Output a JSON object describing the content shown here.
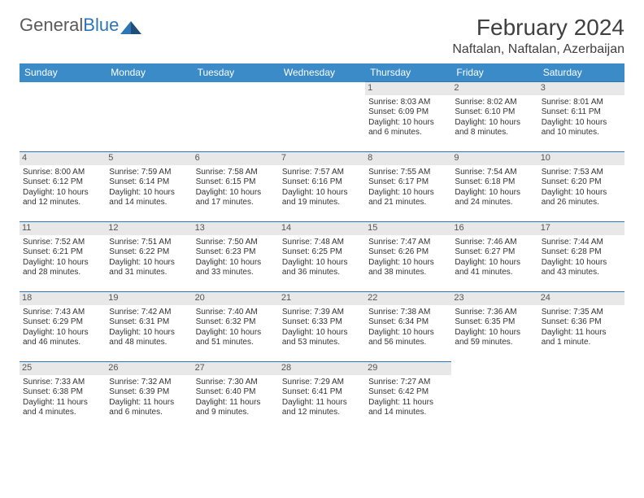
{
  "logo": {
    "text1": "General",
    "text2": "Blue"
  },
  "title": "February 2024",
  "location": "Naftalan, Naftalan, Azerbaijan",
  "colors": {
    "header_bg": "#3b8bc8",
    "header_text": "#ffffff",
    "border": "#2e75b6",
    "daynum_bg": "#e8e8e8",
    "text": "#333333",
    "title_text": "#404040"
  },
  "day_headers": [
    "Sunday",
    "Monday",
    "Tuesday",
    "Wednesday",
    "Thursday",
    "Friday",
    "Saturday"
  ],
  "weeks": [
    [
      null,
      null,
      null,
      null,
      {
        "n": "1",
        "sunrise": "Sunrise: 8:03 AM",
        "sunset": "Sunset: 6:09 PM",
        "day1": "Daylight: 10 hours",
        "day2": "and 6 minutes."
      },
      {
        "n": "2",
        "sunrise": "Sunrise: 8:02 AM",
        "sunset": "Sunset: 6:10 PM",
        "day1": "Daylight: 10 hours",
        "day2": "and 8 minutes."
      },
      {
        "n": "3",
        "sunrise": "Sunrise: 8:01 AM",
        "sunset": "Sunset: 6:11 PM",
        "day1": "Daylight: 10 hours",
        "day2": "and 10 minutes."
      }
    ],
    [
      {
        "n": "4",
        "sunrise": "Sunrise: 8:00 AM",
        "sunset": "Sunset: 6:12 PM",
        "day1": "Daylight: 10 hours",
        "day2": "and 12 minutes."
      },
      {
        "n": "5",
        "sunrise": "Sunrise: 7:59 AM",
        "sunset": "Sunset: 6:14 PM",
        "day1": "Daylight: 10 hours",
        "day2": "and 14 minutes."
      },
      {
        "n": "6",
        "sunrise": "Sunrise: 7:58 AM",
        "sunset": "Sunset: 6:15 PM",
        "day1": "Daylight: 10 hours",
        "day2": "and 17 minutes."
      },
      {
        "n": "7",
        "sunrise": "Sunrise: 7:57 AM",
        "sunset": "Sunset: 6:16 PM",
        "day1": "Daylight: 10 hours",
        "day2": "and 19 minutes."
      },
      {
        "n": "8",
        "sunrise": "Sunrise: 7:55 AM",
        "sunset": "Sunset: 6:17 PM",
        "day1": "Daylight: 10 hours",
        "day2": "and 21 minutes."
      },
      {
        "n": "9",
        "sunrise": "Sunrise: 7:54 AM",
        "sunset": "Sunset: 6:18 PM",
        "day1": "Daylight: 10 hours",
        "day2": "and 24 minutes."
      },
      {
        "n": "10",
        "sunrise": "Sunrise: 7:53 AM",
        "sunset": "Sunset: 6:20 PM",
        "day1": "Daylight: 10 hours",
        "day2": "and 26 minutes."
      }
    ],
    [
      {
        "n": "11",
        "sunrise": "Sunrise: 7:52 AM",
        "sunset": "Sunset: 6:21 PM",
        "day1": "Daylight: 10 hours",
        "day2": "and 28 minutes."
      },
      {
        "n": "12",
        "sunrise": "Sunrise: 7:51 AM",
        "sunset": "Sunset: 6:22 PM",
        "day1": "Daylight: 10 hours",
        "day2": "and 31 minutes."
      },
      {
        "n": "13",
        "sunrise": "Sunrise: 7:50 AM",
        "sunset": "Sunset: 6:23 PM",
        "day1": "Daylight: 10 hours",
        "day2": "and 33 minutes."
      },
      {
        "n": "14",
        "sunrise": "Sunrise: 7:48 AM",
        "sunset": "Sunset: 6:25 PM",
        "day1": "Daylight: 10 hours",
        "day2": "and 36 minutes."
      },
      {
        "n": "15",
        "sunrise": "Sunrise: 7:47 AM",
        "sunset": "Sunset: 6:26 PM",
        "day1": "Daylight: 10 hours",
        "day2": "and 38 minutes."
      },
      {
        "n": "16",
        "sunrise": "Sunrise: 7:46 AM",
        "sunset": "Sunset: 6:27 PM",
        "day1": "Daylight: 10 hours",
        "day2": "and 41 minutes."
      },
      {
        "n": "17",
        "sunrise": "Sunrise: 7:44 AM",
        "sunset": "Sunset: 6:28 PM",
        "day1": "Daylight: 10 hours",
        "day2": "and 43 minutes."
      }
    ],
    [
      {
        "n": "18",
        "sunrise": "Sunrise: 7:43 AM",
        "sunset": "Sunset: 6:29 PM",
        "day1": "Daylight: 10 hours",
        "day2": "and 46 minutes."
      },
      {
        "n": "19",
        "sunrise": "Sunrise: 7:42 AM",
        "sunset": "Sunset: 6:31 PM",
        "day1": "Daylight: 10 hours",
        "day2": "and 48 minutes."
      },
      {
        "n": "20",
        "sunrise": "Sunrise: 7:40 AM",
        "sunset": "Sunset: 6:32 PM",
        "day1": "Daylight: 10 hours",
        "day2": "and 51 minutes."
      },
      {
        "n": "21",
        "sunrise": "Sunrise: 7:39 AM",
        "sunset": "Sunset: 6:33 PM",
        "day1": "Daylight: 10 hours",
        "day2": "and 53 minutes."
      },
      {
        "n": "22",
        "sunrise": "Sunrise: 7:38 AM",
        "sunset": "Sunset: 6:34 PM",
        "day1": "Daylight: 10 hours",
        "day2": "and 56 minutes."
      },
      {
        "n": "23",
        "sunrise": "Sunrise: 7:36 AM",
        "sunset": "Sunset: 6:35 PM",
        "day1": "Daylight: 10 hours",
        "day2": "and 59 minutes."
      },
      {
        "n": "24",
        "sunrise": "Sunrise: 7:35 AM",
        "sunset": "Sunset: 6:36 PM",
        "day1": "Daylight: 11 hours",
        "day2": "and 1 minute."
      }
    ],
    [
      {
        "n": "25",
        "sunrise": "Sunrise: 7:33 AM",
        "sunset": "Sunset: 6:38 PM",
        "day1": "Daylight: 11 hours",
        "day2": "and 4 minutes."
      },
      {
        "n": "26",
        "sunrise": "Sunrise: 7:32 AM",
        "sunset": "Sunset: 6:39 PM",
        "day1": "Daylight: 11 hours",
        "day2": "and 6 minutes."
      },
      {
        "n": "27",
        "sunrise": "Sunrise: 7:30 AM",
        "sunset": "Sunset: 6:40 PM",
        "day1": "Daylight: 11 hours",
        "day2": "and 9 minutes."
      },
      {
        "n": "28",
        "sunrise": "Sunrise: 7:29 AM",
        "sunset": "Sunset: 6:41 PM",
        "day1": "Daylight: 11 hours",
        "day2": "and 12 minutes."
      },
      {
        "n": "29",
        "sunrise": "Sunrise: 7:27 AM",
        "sunset": "Sunset: 6:42 PM",
        "day1": "Daylight: 11 hours",
        "day2": "and 14 minutes."
      },
      null,
      null
    ]
  ]
}
